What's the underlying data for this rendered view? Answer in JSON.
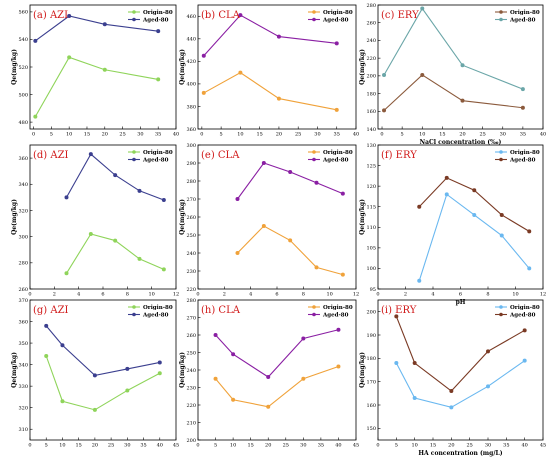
{
  "chart_data": [
    {
      "panel": "(a) AZI",
      "type": "line",
      "x": [
        0.5,
        10,
        20,
        35
      ],
      "xlim": [
        -1,
        40
      ],
      "xticks": [
        0,
        5,
        10,
        15,
        20,
        25,
        30,
        35,
        40
      ],
      "ylim": [
        475,
        565
      ],
      "yticks": [
        480,
        500,
        520,
        540,
        560
      ],
      "ylabel": "Qe(mg/kg)",
      "xlabel": "",
      "legend": "top-right",
      "series": [
        {
          "name": "Origin-80",
          "values": [
            484,
            527,
            518,
            511
          ],
          "color": "#8fd45a"
        },
        {
          "name": "Aged-80",
          "values": [
            539,
            557,
            551,
            546
          ],
          "color": "#3b3f8f"
        }
      ]
    },
    {
      "panel": "(d) AZI",
      "type": "line",
      "x": [
        3,
        5,
        7,
        9,
        11
      ],
      "xlim": [
        0,
        12
      ],
      "xticks": [
        0,
        2,
        4,
        6,
        8,
        10,
        12
      ],
      "ylim": [
        260,
        370
      ],
      "yticks": [
        260,
        280,
        300,
        320,
        340,
        360
      ],
      "ylabel": "Qe(mg/kg)",
      "xlabel": "",
      "legend": "top-right",
      "series": [
        {
          "name": "Origin-80",
          "values": [
            272,
            302,
            297,
            283,
            275
          ],
          "color": "#8fd45a"
        },
        {
          "name": "Aged-80",
          "values": [
            330,
            363,
            347,
            335,
            328
          ],
          "color": "#3b3f8f"
        }
      ]
    },
    {
      "panel": "(g) AZI",
      "type": "line",
      "x": [
        5,
        10,
        20,
        30,
        40
      ],
      "xlim": [
        0,
        45
      ],
      "xticks": [
        0,
        5,
        10,
        15,
        20,
        25,
        30,
        35,
        40,
        45
      ],
      "ylim": [
        305,
        370
      ],
      "yticks": [
        310,
        320,
        330,
        340,
        350,
        360,
        370
      ],
      "ylabel": "Qe(mg/kg)",
      "xlabel": "",
      "legend": "top-right",
      "series": [
        {
          "name": "Origin-80",
          "values": [
            344,
            323,
            319,
            328,
            336
          ],
          "color": "#8fd45a"
        },
        {
          "name": "Aged-80",
          "values": [
            358,
            349,
            335,
            338,
            341
          ],
          "color": "#3b3f8f"
        }
      ]
    },
    {
      "panel": "(b) CLA",
      "type": "line",
      "x": [
        0.5,
        10,
        20,
        35
      ],
      "xlim": [
        -1,
        40
      ],
      "xticks": [
        0,
        5,
        10,
        15,
        20,
        25,
        30,
        35,
        40
      ],
      "ylim": [
        360,
        470
      ],
      "yticks": [
        360,
        380,
        400,
        420,
        440,
        460
      ],
      "ylabel": "Qe(mg/kg)",
      "xlabel": "",
      "legend": "top-right",
      "series": [
        {
          "name": "Origin-80",
          "values": [
            392,
            410,
            387,
            377
          ],
          "color": "#f0a23a"
        },
        {
          "name": "Aged-80",
          "values": [
            425,
            461,
            442,
            436
          ],
          "color": "#8a1fa3"
        }
      ]
    },
    {
      "panel": "(e) CLA",
      "type": "line",
      "x": [
        3,
        5,
        7,
        9,
        11
      ],
      "xlim": [
        0,
        12
      ],
      "xticks": [
        0,
        2,
        4,
        6,
        8,
        10,
        12
      ],
      "ylim": [
        220,
        300
      ],
      "yticks": [
        220,
        230,
        240,
        250,
        260,
        270,
        280,
        290,
        300
      ],
      "ylabel": "Qe(mg/kg)",
      "xlabel": "",
      "legend": "top-right",
      "series": [
        {
          "name": "Origin-80",
          "values": [
            240,
            255,
            247,
            232,
            228
          ],
          "color": "#f0a23a"
        },
        {
          "name": "Aged-80",
          "values": [
            270,
            290,
            285,
            279,
            273
          ],
          "color": "#8a1fa3"
        }
      ]
    },
    {
      "panel": "(h) CLA",
      "type": "line",
      "x": [
        5,
        10,
        20,
        30,
        40
      ],
      "xlim": [
        0,
        45
      ],
      "xticks": [
        0,
        5,
        10,
        15,
        20,
        25,
        30,
        35,
        40,
        45
      ],
      "ylim": [
        200,
        280
      ],
      "yticks": [
        200,
        210,
        220,
        230,
        240,
        250,
        260,
        270,
        280
      ],
      "ylabel": "Qe(mg/kg)",
      "xlabel": "",
      "legend": "top-right",
      "series": [
        {
          "name": "Origin-80",
          "values": [
            235,
            223,
            219,
            235,
            242
          ],
          "color": "#f0a23a"
        },
        {
          "name": "Aged-80",
          "values": [
            260,
            249,
            236,
            258,
            263
          ],
          "color": "#8a1fa3"
        }
      ]
    },
    {
      "panel": "(c) ERY",
      "type": "line",
      "x": [
        0.5,
        10,
        20,
        35
      ],
      "xlim": [
        -1,
        40
      ],
      "xticks": [
        0,
        5,
        10,
        15,
        20,
        25,
        30,
        35,
        40
      ],
      "ylim": [
        140,
        280
      ],
      "yticks": [
        140,
        160,
        180,
        200,
        220,
        240,
        260,
        280
      ],
      "ylabel": "Qe(mg/kg)",
      "xlabel": "NaCl concentration (‰)",
      "legend": "top-right",
      "series": [
        {
          "name": "Origin-80",
          "values": [
            161,
            201,
            172,
            164
          ],
          "color": "#8b5a3c"
        },
        {
          "name": "Aged-80",
          "values": [
            201,
            276,
            212,
            185
          ],
          "color": "#6ba6a8"
        }
      ]
    },
    {
      "panel": "(f) ERY",
      "type": "line",
      "x": [
        3,
        5,
        7,
        9,
        11
      ],
      "xlim": [
        0,
        12
      ],
      "xticks": [
        0,
        2,
        4,
        6,
        8,
        10,
        12
      ],
      "ylim": [
        95,
        130
      ],
      "yticks": [
        95,
        100,
        105,
        110,
        115,
        120,
        125,
        130
      ],
      "ylabel": "Qe(mg/kg)",
      "xlabel": "pH",
      "legend": "top-right",
      "series": [
        {
          "name": "Origin-80",
          "values": [
            97,
            118,
            113,
            108,
            100
          ],
          "color": "#6ab8f0"
        },
        {
          "name": "Aged-80",
          "values": [
            115,
            122,
            119,
            113,
            109
          ],
          "color": "#7a3a24"
        }
      ]
    },
    {
      "panel": "(i) ERY",
      "type": "line",
      "x": [
        5,
        10,
        20,
        30,
        40
      ],
      "xlim": [
        0,
        45
      ],
      "xticks": [
        0,
        5,
        10,
        15,
        20,
        25,
        30,
        35,
        40,
        45
      ],
      "ylim": [
        145,
        205
      ],
      "yticks": [
        150,
        160,
        170,
        180,
        190,
        200
      ],
      "ylabel": "Qe(mg/kg)",
      "xlabel": "HA  concentration (mg/L)",
      "legend": "top-right",
      "series": [
        {
          "name": "Origin-80",
          "values": [
            178,
            163,
            159,
            168,
            179
          ],
          "color": "#6ab8f0"
        },
        {
          "name": "Aged-80",
          "values": [
            198,
            178,
            166,
            183,
            192
          ],
          "color": "#7a3a24"
        }
      ]
    }
  ]
}
